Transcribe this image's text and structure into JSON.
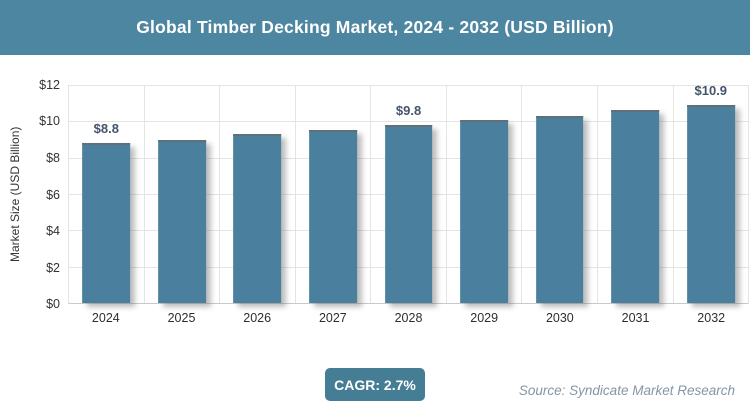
{
  "header": {
    "title": "Global Timber Decking Market, 2024 - 2032 (USD Billion)"
  },
  "chart_data": {
    "type": "bar",
    "title": "Global Timber Decking Market, 2024 - 2032 (USD Billion)",
    "categories": [
      "2024",
      "2025",
      "2026",
      "2027",
      "2028",
      "2029",
      "2030",
      "2031",
      "2032"
    ],
    "values": [
      8.8,
      9.0,
      9.3,
      9.5,
      9.8,
      10.1,
      10.3,
      10.6,
      10.9
    ],
    "bar_labels": [
      "$8.8",
      "",
      "",
      "",
      "$9.8",
      "",
      "",
      "",
      "$10.9"
    ],
    "xlabel": "",
    "ylabel": "Market Size (USD Billion)",
    "ylim": [
      0,
      12
    ],
    "ytick_step": 2,
    "ytick_labels": [
      "$0",
      "$2",
      "$4",
      "$6",
      "$8",
      "$10",
      "$12"
    ],
    "grid": true,
    "legend": "none",
    "bar_color": "#4A809D"
  },
  "footer": {
    "cagr_label": "CAGR: 2.7%",
    "source": "Source: Syndicate Market Research"
  },
  "colors": {
    "banner_bg": "#4D86A0",
    "bar": "#4A809D",
    "badge_bg": "#457E94",
    "data_label": "#44546A",
    "source_text": "#8496A7"
  }
}
